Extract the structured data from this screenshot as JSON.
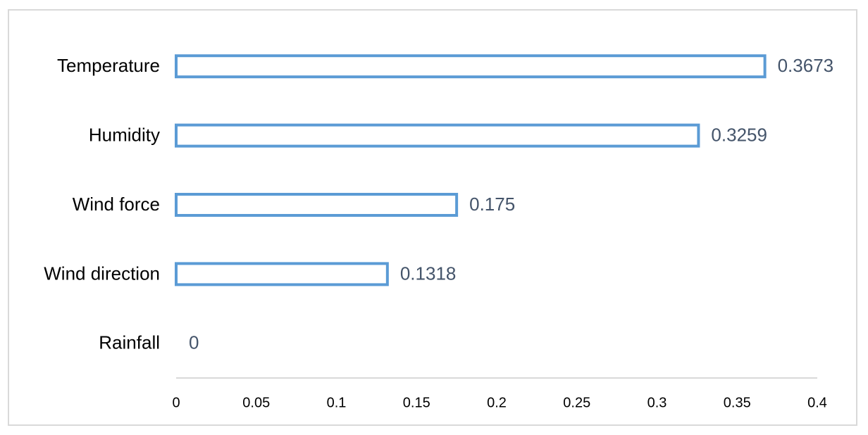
{
  "chart_data": {
    "type": "bar",
    "orientation": "horizontal",
    "categories": [
      "Temperature",
      "Humidity",
      "Wind force",
      "Wind direction",
      "Rainfall"
    ],
    "values": [
      0.3673,
      0.3259,
      0.175,
      0.1318,
      0
    ],
    "color": "#5b9bd5",
    "xlim": [
      0,
      0.4
    ],
    "xticks": [
      0,
      0.05,
      0.1,
      0.15,
      0.2,
      0.25,
      0.3,
      0.35,
      0.4
    ],
    "grid": false
  }
}
